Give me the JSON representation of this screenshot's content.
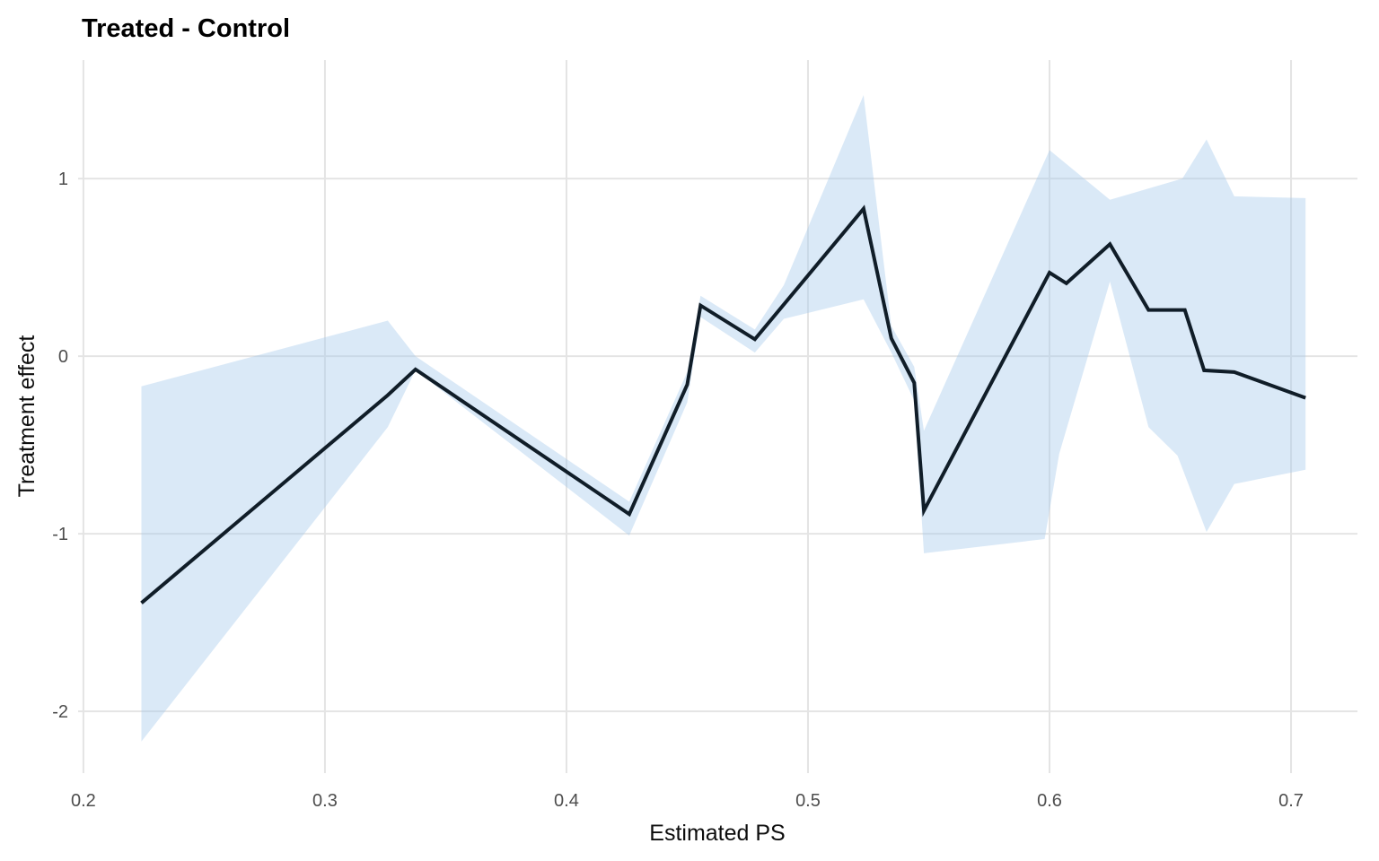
{
  "title": "Treated - Control",
  "axes": {
    "x_title": "Estimated PS",
    "y_title": "Treatment effect",
    "x_tick_labels": [
      "0.2",
      "0.3",
      "0.4",
      "0.5",
      "0.6",
      "0.7"
    ],
    "y_tick_labels": [
      "1",
      "0",
      "-1",
      "-2"
    ]
  },
  "colors": {
    "line": "#101d28",
    "ribbon": "rgba(168,203,235,0.42)",
    "grid": "#e4e4e4",
    "tick_text": "#4d4d4d",
    "title_text": "#000000",
    "background": "#ffffff"
  },
  "chart_data": {
    "type": "line",
    "title": "Treated - Control",
    "xlabel": "Estimated PS",
    "ylabel": "Treatment effect",
    "x_ticks": [
      0.2,
      0.3,
      0.4,
      0.5,
      0.6,
      0.7
    ],
    "y_ticks": [
      1,
      0,
      -1,
      -2
    ],
    "xlim": [
      0.1978,
      0.7275
    ],
    "ylim": [
      -2.348,
      1.667
    ],
    "grid": "major-only",
    "legend_position": "none",
    "series": [
      {
        "name": "Treated - Control",
        "points": [
          [
            0.224,
            -1.39
          ],
          [
            0.326,
            -0.22
          ],
          [
            0.3375,
            -0.075
          ],
          [
            0.426,
            -0.89
          ],
          [
            0.45,
            -0.16
          ],
          [
            0.4555,
            0.285
          ],
          [
            0.478,
            0.095
          ],
          [
            0.523,
            0.83
          ],
          [
            0.5345,
            0.1
          ],
          [
            0.544,
            -0.15
          ],
          [
            0.548,
            -0.87
          ],
          [
            0.6,
            0.47
          ],
          [
            0.607,
            0.41
          ],
          [
            0.625,
            0.63
          ],
          [
            0.641,
            0.26
          ],
          [
            0.656,
            0.26
          ],
          [
            0.664,
            -0.08
          ],
          [
            0.6765,
            -0.09
          ],
          [
            0.706,
            -0.235
          ]
        ]
      }
    ],
    "ribbon": {
      "name": "confidence-band",
      "upper": [
        [
          0.224,
          -0.17
        ],
        [
          0.326,
          0.2
        ],
        [
          0.3375,
          0.0
        ],
        [
          0.426,
          -0.82
        ],
        [
          0.45,
          -0.09
        ],
        [
          0.4555,
          0.34
        ],
        [
          0.478,
          0.15
        ],
        [
          0.49,
          0.4
        ],
        [
          0.523,
          1.47
        ],
        [
          0.5345,
          0.17
        ],
        [
          0.544,
          -0.06
        ],
        [
          0.548,
          -0.42
        ],
        [
          0.6,
          1.16
        ],
        [
          0.625,
          0.88
        ],
        [
          0.655,
          1.0
        ],
        [
          0.665,
          1.22
        ],
        [
          0.6765,
          0.9
        ],
        [
          0.706,
          0.89
        ]
      ],
      "lower": [
        [
          0.224,
          -2.17
        ],
        [
          0.326,
          -0.4
        ],
        [
          0.3375,
          -0.08
        ],
        [
          0.426,
          -1.01
        ],
        [
          0.45,
          -0.26
        ],
        [
          0.4555,
          0.22
        ],
        [
          0.478,
          0.02
        ],
        [
          0.49,
          0.21
        ],
        [
          0.523,
          0.32
        ],
        [
          0.5345,
          0.02
        ],
        [
          0.544,
          -0.25
        ],
        [
          0.548,
          -1.11
        ],
        [
          0.598,
          -1.03
        ],
        [
          0.604,
          -0.55
        ],
        [
          0.625,
          0.42
        ],
        [
          0.641,
          -0.4
        ],
        [
          0.653,
          -0.56
        ],
        [
          0.665,
          -0.99
        ],
        [
          0.6765,
          -0.72
        ],
        [
          0.706,
          -0.64
        ]
      ]
    }
  }
}
